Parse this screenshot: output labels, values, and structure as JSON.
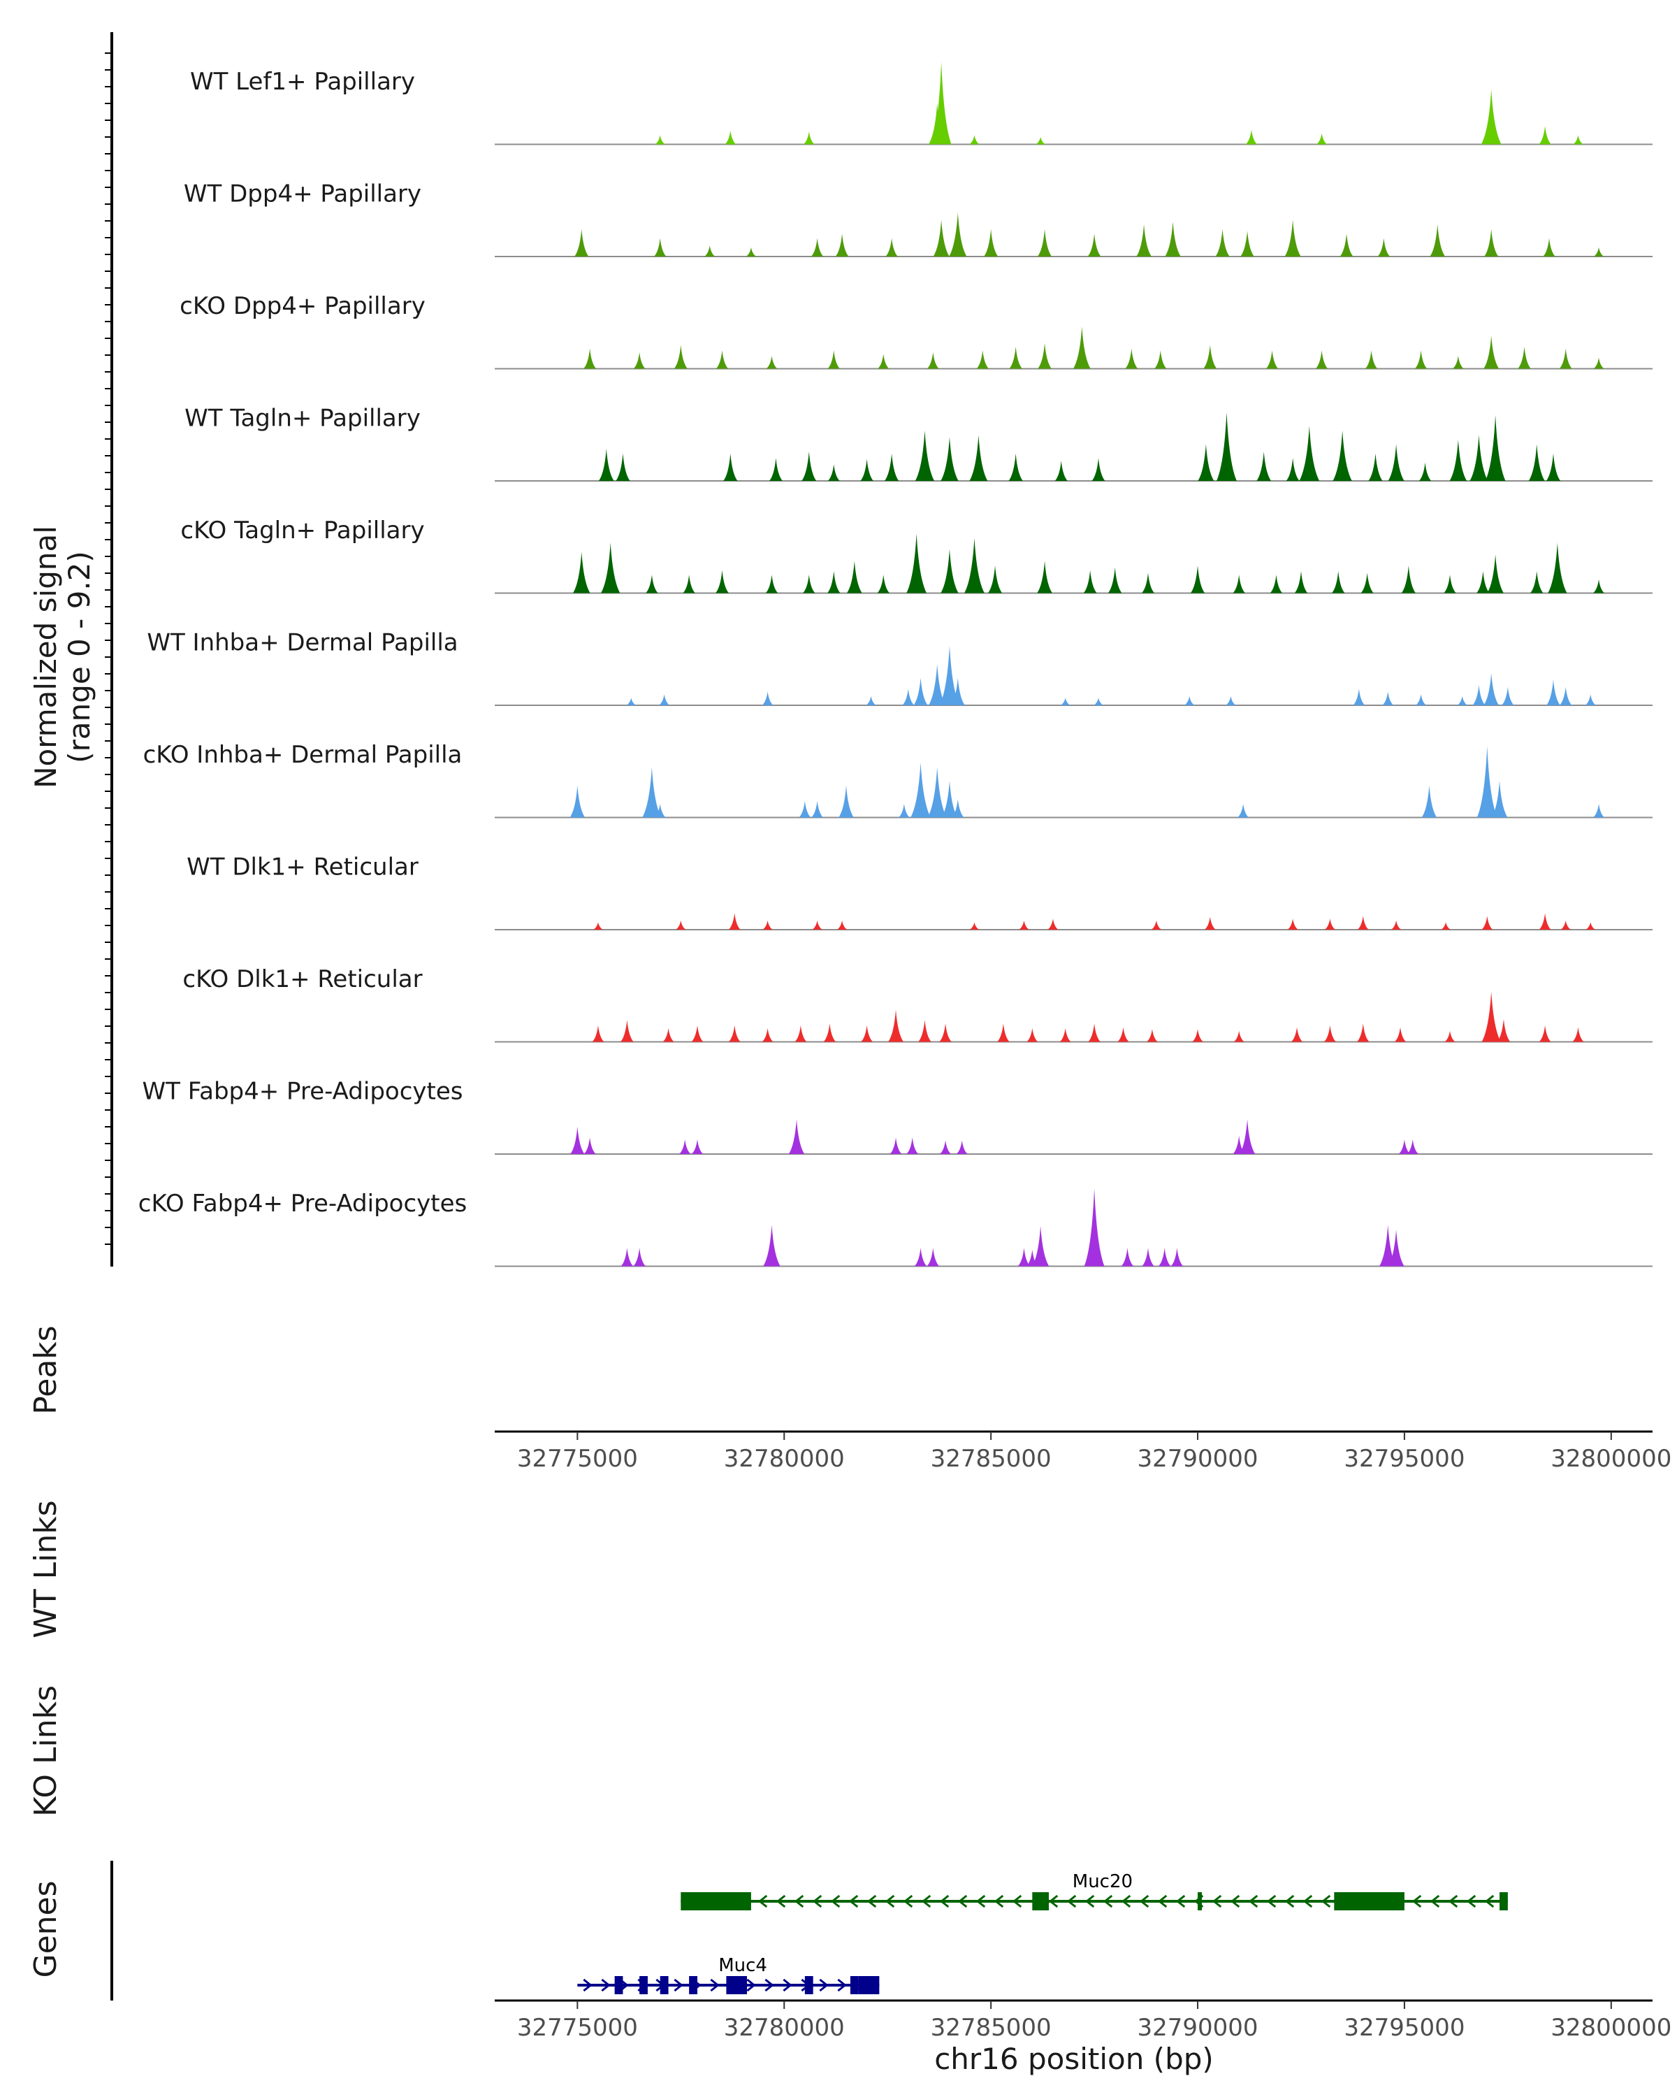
{
  "chart_data": {
    "type": "coverage",
    "y_axis_title": "Normalized signal",
    "y_axis_range_label": "(range 0 - 9.2)",
    "ylim": [
      0,
      9.2
    ],
    "xlim": [
      32773000,
      32801000
    ],
    "x_ticks": [
      32775000,
      32780000,
      32785000,
      32790000,
      32795000,
      32800000
    ],
    "x_tick_labels": [
      "32775000",
      "32780000",
      "32785000",
      "32790000",
      "32795000",
      "32800000"
    ],
    "xlabel": "chr16 position (bp)",
    "tracks": [
      {
        "name": "WT Lef1+ Papillary",
        "color": "#66cd00",
        "peaks": [
          [
            32783800,
            9.0
          ],
          [
            32783700,
            4.5
          ],
          [
            32797100,
            6.0
          ],
          [
            32798400,
            2.0
          ],
          [
            32777000,
            1.0
          ],
          [
            32778700,
            1.5
          ],
          [
            32780600,
            1.4
          ],
          [
            32791300,
            1.6
          ],
          [
            32793000,
            1.2
          ],
          [
            32784600,
            1.0
          ],
          [
            32786200,
            0.8
          ],
          [
            32799200,
            1.0
          ]
        ]
      },
      {
        "name": "WT Dpp4+ Papillary",
        "color": "#4e9b0a",
        "peaks": [
          [
            32775100,
            3.0
          ],
          [
            32777000,
            2.0
          ],
          [
            32778200,
            1.2
          ],
          [
            32779200,
            1.0
          ],
          [
            32780800,
            2.0
          ],
          [
            32781400,
            2.5
          ],
          [
            32782600,
            2.0
          ],
          [
            32783800,
            4.0
          ],
          [
            32784200,
            4.8
          ],
          [
            32785000,
            3.0
          ],
          [
            32786300,
            3.0
          ],
          [
            32787500,
            2.5
          ],
          [
            32788700,
            3.5
          ],
          [
            32789400,
            3.8
          ],
          [
            32790600,
            3.0
          ],
          [
            32791200,
            2.8
          ],
          [
            32792300,
            4.0
          ],
          [
            32793600,
            2.5
          ],
          [
            32794500,
            2.0
          ],
          [
            32795800,
            3.5
          ],
          [
            32797100,
            3.0
          ],
          [
            32798500,
            2.0
          ],
          [
            32799700,
            1.0
          ]
        ]
      },
      {
        "name": "cKO Dpp4+ Papillary",
        "color": "#4e9b0a",
        "peaks": [
          [
            32775300,
            2.2
          ],
          [
            32776500,
            1.8
          ],
          [
            32777500,
            2.6
          ],
          [
            32778500,
            2.0
          ],
          [
            32779700,
            1.4
          ],
          [
            32781200,
            2.0
          ],
          [
            32782400,
            1.6
          ],
          [
            32783600,
            1.8
          ],
          [
            32784800,
            2.0
          ],
          [
            32785600,
            2.4
          ],
          [
            32786300,
            2.8
          ],
          [
            32787200,
            4.6
          ],
          [
            32788400,
            2.2
          ],
          [
            32789100,
            2.0
          ],
          [
            32790300,
            2.6
          ],
          [
            32791800,
            2.0
          ],
          [
            32793000,
            2.0
          ],
          [
            32794200,
            2.0
          ],
          [
            32795400,
            2.0
          ],
          [
            32796300,
            1.4
          ],
          [
            32797100,
            3.6
          ],
          [
            32797900,
            2.4
          ],
          [
            32798900,
            2.2
          ],
          [
            32799700,
            1.2
          ]
        ]
      },
      {
        "name": "WT Tagln+ Papillary",
        "color": "#006400",
        "peaks": [
          [
            32775700,
            3.5
          ],
          [
            32776100,
            3.0
          ],
          [
            32778700,
            3.0
          ],
          [
            32779800,
            2.5
          ],
          [
            32780600,
            3.2
          ],
          [
            32781200,
            1.8
          ],
          [
            32782000,
            2.4
          ],
          [
            32782600,
            3.0
          ],
          [
            32783400,
            5.5
          ],
          [
            32784000,
            4.8
          ],
          [
            32784700,
            5.0
          ],
          [
            32785600,
            3.0
          ],
          [
            32786700,
            2.2
          ],
          [
            32787600,
            2.5
          ],
          [
            32790200,
            4.0
          ],
          [
            32790700,
            7.5
          ],
          [
            32791600,
            3.2
          ],
          [
            32792300,
            2.5
          ],
          [
            32792700,
            6.0
          ],
          [
            32793500,
            5.5
          ],
          [
            32794300,
            3.0
          ],
          [
            32794800,
            4.0
          ],
          [
            32795500,
            2.0
          ],
          [
            32796300,
            4.5
          ],
          [
            32796800,
            5.0
          ],
          [
            32797200,
            7.2
          ],
          [
            32798200,
            4.0
          ],
          [
            32798600,
            3.0
          ]
        ]
      },
      {
        "name": "cKO Tagln+ Papillary",
        "color": "#006400",
        "peaks": [
          [
            32775100,
            4.5
          ],
          [
            32775800,
            5.5
          ],
          [
            32776800,
            2.0
          ],
          [
            32777700,
            2.0
          ],
          [
            32778500,
            2.5
          ],
          [
            32779700,
            2.0
          ],
          [
            32780600,
            2.0
          ],
          [
            32781200,
            2.4
          ],
          [
            32781700,
            3.5
          ],
          [
            32782400,
            2.0
          ],
          [
            32783200,
            6.5
          ],
          [
            32784000,
            4.8
          ],
          [
            32784600,
            6.0
          ],
          [
            32785100,
            3.0
          ],
          [
            32786300,
            3.5
          ],
          [
            32787400,
            2.5
          ],
          [
            32788000,
            2.8
          ],
          [
            32788800,
            2.2
          ],
          [
            32790000,
            3.0
          ],
          [
            32791000,
            2.0
          ],
          [
            32791900,
            2.0
          ],
          [
            32792500,
            2.4
          ],
          [
            32793400,
            2.4
          ],
          [
            32794100,
            2.2
          ],
          [
            32795100,
            3.0
          ],
          [
            32796100,
            2.0
          ],
          [
            32796900,
            2.4
          ],
          [
            32797200,
            4.2
          ],
          [
            32798200,
            2.4
          ],
          [
            32798700,
            5.5
          ],
          [
            32799700,
            1.5
          ]
        ]
      },
      {
        "name": "WT Inhba+ Dermal Papilla",
        "color": "#56a0e6",
        "peaks": [
          [
            32776300,
            0.8
          ],
          [
            32777100,
            1.2
          ],
          [
            32779600,
            1.5
          ],
          [
            32782100,
            1.0
          ],
          [
            32783000,
            1.8
          ],
          [
            32783300,
            3.0
          ],
          [
            32783700,
            4.5
          ],
          [
            32784000,
            6.5
          ],
          [
            32784200,
            3.0
          ],
          [
            32786800,
            0.8
          ],
          [
            32787600,
            0.8
          ],
          [
            32789800,
            1.0
          ],
          [
            32790800,
            1.0
          ],
          [
            32793900,
            1.8
          ],
          [
            32794600,
            1.5
          ],
          [
            32795400,
            1.2
          ],
          [
            32796400,
            1.0
          ],
          [
            32796800,
            2.2
          ],
          [
            32797100,
            3.5
          ],
          [
            32797500,
            2.0
          ],
          [
            32798600,
            2.8
          ],
          [
            32798900,
            2.0
          ],
          [
            32799500,
            1.2
          ]
        ]
      },
      {
        "name": "cKO Inhba+ Dermal Papilla",
        "color": "#56a0e6",
        "peaks": [
          [
            32775000,
            3.5
          ],
          [
            32776800,
            5.5
          ],
          [
            32777000,
            1.5
          ],
          [
            32780500,
            1.8
          ],
          [
            32780800,
            1.8
          ],
          [
            32781500,
            3.5
          ],
          [
            32782900,
            1.5
          ],
          [
            32783300,
            6.0
          ],
          [
            32783700,
            5.5
          ],
          [
            32784000,
            4.0
          ],
          [
            32784200,
            2.0
          ],
          [
            32791100,
            1.5
          ],
          [
            32795600,
            3.5
          ],
          [
            32797000,
            7.8
          ],
          [
            32797300,
            4.0
          ],
          [
            32799700,
            1.5
          ]
        ]
      },
      {
        "name": "WT Dlk1+ Reticular",
        "color": "#ee2c2c",
        "peaks": [
          [
            32775500,
            0.8
          ],
          [
            32777500,
            1.0
          ],
          [
            32778800,
            1.8
          ],
          [
            32779600,
            1.0
          ],
          [
            32780800,
            1.0
          ],
          [
            32781400,
            1.0
          ],
          [
            32784600,
            0.8
          ],
          [
            32785800,
            1.0
          ],
          [
            32786500,
            1.2
          ],
          [
            32789000,
            1.0
          ],
          [
            32790300,
            1.4
          ],
          [
            32792300,
            1.2
          ],
          [
            32793200,
            1.2
          ],
          [
            32794000,
            1.5
          ],
          [
            32794800,
            1.0
          ],
          [
            32796000,
            0.8
          ],
          [
            32797000,
            1.5
          ],
          [
            32798400,
            1.8
          ],
          [
            32798900,
            1.0
          ],
          [
            32799500,
            0.8
          ]
        ]
      },
      {
        "name": "cKO Dlk1+ Reticular",
        "color": "#ee2c2c",
        "peaks": [
          [
            32775500,
            1.8
          ],
          [
            32776200,
            2.4
          ],
          [
            32777200,
            1.5
          ],
          [
            32777900,
            1.8
          ],
          [
            32778800,
            1.8
          ],
          [
            32779600,
            1.5
          ],
          [
            32780400,
            1.8
          ],
          [
            32781100,
            2.0
          ],
          [
            32782000,
            1.8
          ],
          [
            32782700,
            3.5
          ],
          [
            32783400,
            2.4
          ],
          [
            32783900,
            2.0
          ],
          [
            32785300,
            2.0
          ],
          [
            32786000,
            1.5
          ],
          [
            32786800,
            1.5
          ],
          [
            32787500,
            2.0
          ],
          [
            32788200,
            1.6
          ],
          [
            32788900,
            1.4
          ],
          [
            32790000,
            1.4
          ],
          [
            32791000,
            1.2
          ],
          [
            32792400,
            1.6
          ],
          [
            32793200,
            1.8
          ],
          [
            32794000,
            2.0
          ],
          [
            32794900,
            1.6
          ],
          [
            32796100,
            1.2
          ],
          [
            32797100,
            5.5
          ],
          [
            32797400,
            2.5
          ],
          [
            32798400,
            1.8
          ],
          [
            32799200,
            1.6
          ]
        ]
      },
      {
        "name": "WT Fabp4+ Pre-Adipocytes",
        "color": "#a431e0",
        "peaks": [
          [
            32775000,
            3.0
          ],
          [
            32775300,
            1.8
          ],
          [
            32777600,
            1.6
          ],
          [
            32777900,
            1.6
          ],
          [
            32780300,
            3.8
          ],
          [
            32782700,
            1.8
          ],
          [
            32783100,
            1.8
          ],
          [
            32783900,
            1.5
          ],
          [
            32784300,
            1.5
          ],
          [
            32791000,
            2.0
          ],
          [
            32791200,
            3.8
          ],
          [
            32795000,
            1.6
          ],
          [
            32795200,
            1.6
          ]
        ]
      },
      {
        "name": "cKO Fabp4+ Pre-Adipocytes",
        "color": "#a431e0",
        "peaks": [
          [
            32776200,
            2.0
          ],
          [
            32776500,
            2.0
          ],
          [
            32779700,
            4.5
          ],
          [
            32783300,
            2.0
          ],
          [
            32783600,
            2.0
          ],
          [
            32785800,
            2.0
          ],
          [
            32786000,
            1.8
          ],
          [
            32786200,
            4.4
          ],
          [
            32787500,
            8.5
          ],
          [
            32788300,
            2.0
          ],
          [
            32788800,
            2.0
          ],
          [
            32789200,
            2.0
          ],
          [
            32789500,
            2.0
          ],
          [
            32794600,
            4.5
          ],
          [
            32794800,
            4.0
          ]
        ]
      }
    ],
    "panels": {
      "peaks_label": "Peaks",
      "wt_links_label": "WT Links",
      "ko_links_label": "KO Links",
      "genes_label": "Genes"
    },
    "genes": [
      {
        "name": "Muc20",
        "strand": "-",
        "color": "#006400",
        "start": 32777500,
        "end": 32797500,
        "exons": [
          [
            32777500,
            32779200
          ],
          [
            32786000,
            32786400
          ],
          [
            32790000,
            32790100
          ],
          [
            32793300,
            32795000
          ],
          [
            32797300,
            32797500
          ]
        ]
      },
      {
        "name": "Muc4",
        "strand": "+",
        "color": "#00008b",
        "start": 32775000,
        "end": 32782300,
        "exons": [
          [
            32775900,
            32776100
          ],
          [
            32776500,
            32776700
          ],
          [
            32777000,
            32777200
          ],
          [
            32777700,
            32777900
          ],
          [
            32778600,
            32779100
          ],
          [
            32780500,
            32780700
          ],
          [
            32781600,
            32781800
          ],
          [
            32781800,
            32782300
          ]
        ]
      }
    ]
  }
}
